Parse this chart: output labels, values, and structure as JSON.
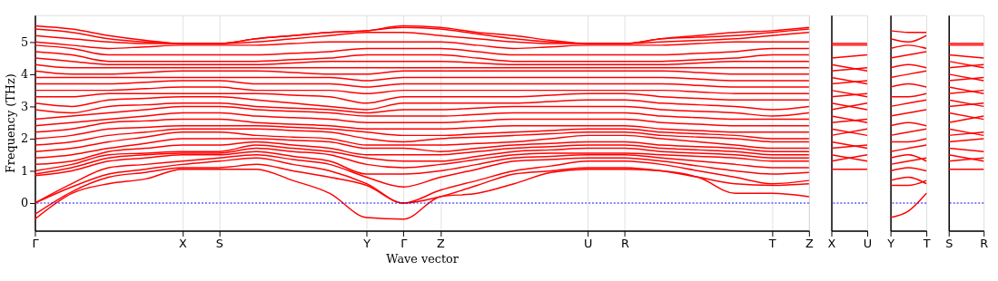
{
  "chart_data": [
    {
      "type": "line",
      "ylabel": "Frequency (THz)",
      "xlabel": "Wave vector",
      "grid": "x",
      "line_style": "solid",
      "categories": [
        "Γ",
        null,
        null,
        null,
        "X",
        "S",
        null,
        null,
        null,
        "Y",
        "Γ",
        "Z",
        null,
        null,
        null,
        "U",
        "R",
        null,
        null,
        null,
        "T",
        "Z"
      ],
      "ylim": [
        -0.86,
        5.83
      ],
      "yticks": [
        0,
        1,
        2,
        3,
        4,
        5
      ],
      "ref_lines": [
        {
          "axis": "y",
          "value": 0,
          "color": "#0000ff",
          "line_style": "dotted"
        }
      ],
      "series": [
        {
          "color": "#ff0000",
          "values": [
            -0.5,
            0.3,
            0.6,
            0.75,
            1.05,
            1.05,
            1.05,
            0.7,
            0.3,
            -0.45,
            -0.5,
            0.2,
            0.3,
            0.6,
            0.95,
            1.05,
            1.05,
            1.0,
            0.8,
            0.3,
            0.3,
            0.2
          ]
        },
        {
          "color": "#ff0000",
          "values": [
            -0.35,
            0.35,
            0.8,
            0.95,
            1.1,
            1.1,
            1.2,
            1.0,
            0.8,
            0.55,
            0,
            0.2,
            0.55,
            0.9,
            1.0,
            1.1,
            1.1,
            1.0,
            0.8,
            0.6,
            0.55,
            0.6
          ]
        },
        {
          "color": "#ff0000",
          "values": [
            0,
            0.5,
            0.9,
            1.05,
            1.2,
            1.3,
            1.4,
            1.2,
            1.0,
            0.6,
            0,
            0.4,
            0.7,
            1.0,
            1.15,
            1.3,
            1.3,
            1.2,
            1.0,
            0.8,
            0.6,
            0.7
          ]
        },
        {
          "color": "#ff0000",
          "values": [
            0,
            0.6,
            1.1,
            1.2,
            1.3,
            1.4,
            1.5,
            1.35,
            1.2,
            0.8,
            0.5,
            0.8,
            1.05,
            1.3,
            1.35,
            1.4,
            1.4,
            1.3,
            1.15,
            1.0,
            0.9,
            0.95
          ]
        },
        {
          "color": "#ff0000",
          "values": [
            0.85,
            1.0,
            1.3,
            1.4,
            1.5,
            1.5,
            1.6,
            1.45,
            1.3,
            0.9,
            0.9,
            1.0,
            1.2,
            1.4,
            1.45,
            1.5,
            1.5,
            1.4,
            1.3,
            1.2,
            1.1,
            1.1
          ]
        },
        {
          "color": "#ff0000",
          "values": [
            0.9,
            1.1,
            1.4,
            1.5,
            1.55,
            1.55,
            1.7,
            1.6,
            1.5,
            1.2,
            1.1,
            1.2,
            1.35,
            1.5,
            1.55,
            1.55,
            1.55,
            1.5,
            1.45,
            1.4,
            1.3,
            1.3
          ]
        },
        {
          "color": "#ff0000",
          "values": [
            1.0,
            1.2,
            1.5,
            1.55,
            1.6,
            1.6,
            1.8,
            1.7,
            1.6,
            1.4,
            1.3,
            1.3,
            1.45,
            1.6,
            1.65,
            1.7,
            1.7,
            1.6,
            1.55,
            1.5,
            1.4,
            1.4
          ]
        },
        {
          "color": "#ff0000",
          "values": [
            1.2,
            1.3,
            1.6,
            1.7,
            1.8,
            1.8,
            1.9,
            1.8,
            1.7,
            1.5,
            1.5,
            1.5,
            1.6,
            1.7,
            1.75,
            1.8,
            1.8,
            1.7,
            1.65,
            1.6,
            1.5,
            1.5
          ]
        },
        {
          "color": "#ff0000",
          "values": [
            1.4,
            1.5,
            1.7,
            1.85,
            2.0,
            2.0,
            2.0,
            1.95,
            1.9,
            1.7,
            1.7,
            1.6,
            1.7,
            1.8,
            1.85,
            1.9,
            1.9,
            1.8,
            1.75,
            1.7,
            1.6,
            1.6
          ]
        },
        {
          "color": "#ff0000",
          "values": [
            1.6,
            1.7,
            1.9,
            2.05,
            2.2,
            2.2,
            2.1,
            2.05,
            2.0,
            1.8,
            1.8,
            1.8,
            1.85,
            1.9,
            2.0,
            2.1,
            2.1,
            2.0,
            1.9,
            1.8,
            1.7,
            1.7
          ]
        },
        {
          "color": "#ff0000",
          "values": [
            1.8,
            1.9,
            2.1,
            2.2,
            2.3,
            2.3,
            2.3,
            2.25,
            2.2,
            2.0,
            1.9,
            2.0,
            2.05,
            2.1,
            2.15,
            2.2,
            2.2,
            2.1,
            2.05,
            2.0,
            1.9,
            1.9
          ]
        },
        {
          "color": "#ff0000",
          "values": [
            2.0,
            2.1,
            2.3,
            2.35,
            2.4,
            2.4,
            2.4,
            2.35,
            2.3,
            2.2,
            2.1,
            2.1,
            2.15,
            2.2,
            2.25,
            2.3,
            2.3,
            2.2,
            2.15,
            2.1,
            2.0,
            2.0
          ]
        },
        {
          "color": "#ff0000",
          "values": [
            2.2,
            2.3,
            2.5,
            2.55,
            2.6,
            2.6,
            2.5,
            2.45,
            2.4,
            2.3,
            2.3,
            2.3,
            2.35,
            2.4,
            2.4,
            2.4,
            2.4,
            2.3,
            2.25,
            2.2,
            2.2,
            2.2
          ]
        },
        {
          "color": "#ff0000",
          "values": [
            2.4,
            2.5,
            2.6,
            2.7,
            2.8,
            2.8,
            2.7,
            2.65,
            2.6,
            2.5,
            2.5,
            2.5,
            2.55,
            2.6,
            2.6,
            2.6,
            2.6,
            2.5,
            2.45,
            2.4,
            2.4,
            2.4
          ]
        },
        {
          "color": "#ff0000",
          "values": [
            2.6,
            2.7,
            2.8,
            2.9,
            3.0,
            3.0,
            2.9,
            2.85,
            2.8,
            2.7,
            2.7,
            2.7,
            2.75,
            2.8,
            2.8,
            2.8,
            2.8,
            2.7,
            2.65,
            2.6,
            2.6,
            2.6
          ]
        },
        {
          "color": "#ff0000",
          "values": [
            2.9,
            2.8,
            3.0,
            3.05,
            3.1,
            3.1,
            3.0,
            2.95,
            2.9,
            2.8,
            2.9,
            2.9,
            2.95,
            3.0,
            3.0,
            3.0,
            3.0,
            2.9,
            2.85,
            2.8,
            2.7,
            2.8
          ]
        },
        {
          "color": "#ff0000",
          "values": [
            3.1,
            3.0,
            3.2,
            3.25,
            3.3,
            3.3,
            3.2,
            3.1,
            3.0,
            2.9,
            3.1,
            3.1,
            3.1,
            3.1,
            3.15,
            3.2,
            3.2,
            3.1,
            3.05,
            3.0,
            2.9,
            3.0
          ]
        },
        {
          "color": "#ff0000",
          "values": [
            3.3,
            3.3,
            3.4,
            3.4,
            3.4,
            3.4,
            3.4,
            3.35,
            3.3,
            3.1,
            3.3,
            3.3,
            3.3,
            3.3,
            3.35,
            3.4,
            3.4,
            3.3,
            3.25,
            3.2,
            3.2,
            3.2
          ]
        },
        {
          "color": "#ff0000",
          "values": [
            3.5,
            3.5,
            3.5,
            3.55,
            3.6,
            3.6,
            3.5,
            3.5,
            3.5,
            3.4,
            3.5,
            3.5,
            3.5,
            3.5,
            3.5,
            3.5,
            3.5,
            3.5,
            3.45,
            3.4,
            3.4,
            3.4
          ]
        },
        {
          "color": "#ff0000",
          "values": [
            3.7,
            3.7,
            3.7,
            3.75,
            3.8,
            3.8,
            3.7,
            3.7,
            3.7,
            3.6,
            3.7,
            3.7,
            3.7,
            3.7,
            3.7,
            3.7,
            3.7,
            3.7,
            3.65,
            3.6,
            3.6,
            3.6
          ]
        },
        {
          "color": "#ff0000",
          "values": [
            3.9,
            3.9,
            3.9,
            3.9,
            3.9,
            3.9,
            3.9,
            3.9,
            3.9,
            3.8,
            3.9,
            3.9,
            3.9,
            3.9,
            3.9,
            3.9,
            3.9,
            3.9,
            3.85,
            3.8,
            3.8,
            3.8
          ]
        },
        {
          "color": "#ff0000",
          "values": [
            4.1,
            4.0,
            4.0,
            4.05,
            4.1,
            4.1,
            4.1,
            4.05,
            4.0,
            4.0,
            4.1,
            4.1,
            4.1,
            4.1,
            4.1,
            4.1,
            4.1,
            4.1,
            4.05,
            4.0,
            4.0,
            4.0
          ]
        },
        {
          "color": "#ff0000",
          "values": [
            4.3,
            4.2,
            4.2,
            4.2,
            4.2,
            4.2,
            4.2,
            4.2,
            4.2,
            4.2,
            4.2,
            4.2,
            4.2,
            4.2,
            4.2,
            4.2,
            4.2,
            4.2,
            4.2,
            4.2,
            4.2,
            4.2
          ]
        },
        {
          "color": "#ff0000",
          "values": [
            4.5,
            4.4,
            4.3,
            4.3,
            4.3,
            4.3,
            4.3,
            4.35,
            4.4,
            4.4,
            4.4,
            4.4,
            4.35,
            4.3,
            4.3,
            4.3,
            4.3,
            4.3,
            4.35,
            4.4,
            4.4,
            4.4
          ]
        },
        {
          "color": "#ff0000",
          "values": [
            4.7,
            4.6,
            4.4,
            4.4,
            4.4,
            4.4,
            4.4,
            4.45,
            4.5,
            4.6,
            4.6,
            4.6,
            4.5,
            4.4,
            4.4,
            4.4,
            4.4,
            4.4,
            4.45,
            4.5,
            4.6,
            4.6
          ]
        },
        {
          "color": "#ff0000",
          "values": [
            4.9,
            4.8,
            4.6,
            4.6,
            4.6,
            4.6,
            4.6,
            4.65,
            4.7,
            4.8,
            4.8,
            4.8,
            4.7,
            4.6,
            4.6,
            4.6,
            4.6,
            4.6,
            4.65,
            4.7,
            4.8,
            4.8
          ]
        },
        {
          "color": "#ff0000",
          "values": [
            5.0,
            4.9,
            4.8,
            4.85,
            4.9,
            4.9,
            4.9,
            4.95,
            5.0,
            5.0,
            5.0,
            5.0,
            4.9,
            4.8,
            4.85,
            4.9,
            4.9,
            4.9,
            4.95,
            5.0,
            5.0,
            5.0
          ]
        },
        {
          "color": "#ff0000",
          "values": [
            5.2,
            5.1,
            5.0,
            4.95,
            4.95,
            4.95,
            5.0,
            5.1,
            5.2,
            5.3,
            5.3,
            5.2,
            5.1,
            5.0,
            4.95,
            4.95,
            4.95,
            5.0,
            5.05,
            5.1,
            5.2,
            5.3
          ]
        },
        {
          "color": "#ff0000",
          "values": [
            5.4,
            5.3,
            5.1,
            5.0,
            4.95,
            4.95,
            5.1,
            5.2,
            5.3,
            5.35,
            5.45,
            5.4,
            5.25,
            5.1,
            5.0,
            4.95,
            4.95,
            5.1,
            5.15,
            5.2,
            5.3,
            5.4
          ]
        },
        {
          "color": "#ff0000",
          "values": [
            5.5,
            5.4,
            5.2,
            5.05,
            4.95,
            4.95,
            5.1,
            5.2,
            5.3,
            5.35,
            5.5,
            5.45,
            5.3,
            5.2,
            5.05,
            4.95,
            4.95,
            5.1,
            5.2,
            5.3,
            5.35,
            5.45
          ]
        }
      ]
    },
    {
      "type": "line",
      "tick_labels": "x",
      "line_style": "solid",
      "categories": [
        "X",
        "U"
      ],
      "ylim": [
        -0.86,
        5.83
      ],
      "yticks": [
        0,
        1,
        2,
        3,
        4,
        5
      ],
      "ref_lines": [
        {
          "axis": "y",
          "value": 0,
          "color": "#0000ff",
          "line_style": "dotted"
        }
      ],
      "series": [
        {
          "color": "#ff0000",
          "values": [
            1.05,
            1.05
          ]
        },
        {
          "color": "#ff0000",
          "values": [
            1.3,
            1.5
          ]
        },
        {
          "color": "#ff0000",
          "values": [
            1.5,
            1.3
          ]
        },
        {
          "color": "#ff0000",
          "values": [
            1.7,
            1.8
          ]
        },
        {
          "color": "#ff0000",
          "values": [
            1.9,
            1.7
          ]
        },
        {
          "color": "#ff0000",
          "values": [
            2.1,
            2.3
          ]
        },
        {
          "color": "#ff0000",
          "values": [
            2.3,
            2.1
          ]
        },
        {
          "color": "#ff0000",
          "values": [
            2.5,
            2.6
          ]
        },
        {
          "color": "#ff0000",
          "values": [
            2.7,
            2.5
          ]
        },
        {
          "color": "#ff0000",
          "values": [
            2.9,
            3.1
          ]
        },
        {
          "color": "#ff0000",
          "values": [
            3.1,
            2.9
          ]
        },
        {
          "color": "#ff0000",
          "values": [
            3.3,
            3.4
          ]
        },
        {
          "color": "#ff0000",
          "values": [
            3.5,
            3.3
          ]
        },
        {
          "color": "#ff0000",
          "values": [
            3.7,
            3.8
          ]
        },
        {
          "color": "#ff0000",
          "values": [
            3.9,
            3.7
          ]
        },
        {
          "color": "#ff0000",
          "values": [
            4.1,
            4.2
          ]
        },
        {
          "color": "#ff0000",
          "values": [
            4.3,
            4.1
          ]
        },
        {
          "color": "#ff0000",
          "values": [
            4.5,
            4.6
          ]
        },
        {
          "color": "#ff0000",
          "values": [
            4.9,
            4.9
          ]
        },
        {
          "color": "#ff0000",
          "values": [
            4.95,
            4.95
          ]
        }
      ]
    },
    {
      "type": "line",
      "tick_labels": "x",
      "line_style": "solid",
      "categories": [
        "Y",
        null,
        "T"
      ],
      "ylim": [
        -0.86,
        5.83
      ],
      "yticks": [
        0,
        1,
        2,
        3,
        4,
        5
      ],
      "ref_lines": [
        {
          "axis": "y",
          "value": 0,
          "color": "#0000ff",
          "line_style": "dotted"
        }
      ],
      "series": [
        {
          "color": "#ff0000",
          "values": [
            -0.45,
            -0.25,
            0.3
          ]
        },
        {
          "color": "#ff0000",
          "values": [
            0.55,
            0.55,
            0.7
          ]
        },
        {
          "color": "#ff0000",
          "values": [
            0.7,
            0.8,
            0.6
          ]
        },
        {
          "color": "#ff0000",
          "values": [
            1.0,
            1.1,
            1.0
          ]
        },
        {
          "color": "#ff0000",
          "values": [
            1.2,
            1.3,
            1.4
          ]
        },
        {
          "color": "#ff0000",
          "values": [
            1.4,
            1.5,
            1.3
          ]
        },
        {
          "color": "#ff0000",
          "values": [
            1.6,
            1.7,
            1.8
          ]
        },
        {
          "color": "#ff0000",
          "values": [
            1.9,
            1.9,
            2.0
          ]
        },
        {
          "color": "#ff0000",
          "values": [
            2.1,
            2.2,
            2.3
          ]
        },
        {
          "color": "#ff0000",
          "values": [
            2.4,
            2.5,
            2.4
          ]
        },
        {
          "color": "#ff0000",
          "values": [
            2.7,
            2.8,
            2.9
          ]
        },
        {
          "color": "#ff0000",
          "values": [
            3.0,
            3.1,
            3.2
          ]
        },
        {
          "color": "#ff0000",
          "values": [
            3.3,
            3.3,
            3.4
          ]
        },
        {
          "color": "#ff0000",
          "values": [
            3.6,
            3.7,
            3.6
          ]
        },
        {
          "color": "#ff0000",
          "values": [
            3.9,
            4.0,
            4.1
          ]
        },
        {
          "color": "#ff0000",
          "values": [
            4.2,
            4.3,
            4.2
          ]
        },
        {
          "color": "#ff0000",
          "values": [
            4.5,
            4.6,
            4.7
          ]
        },
        {
          "color": "#ff0000",
          "values": [
            4.8,
            4.9,
            4.8
          ]
        },
        {
          "color": "#ff0000",
          "values": [
            5.1,
            5.0,
            5.2
          ]
        },
        {
          "color": "#ff0000",
          "values": [
            5.35,
            5.3,
            5.3
          ]
        }
      ]
    },
    {
      "type": "line",
      "tick_labels": "x",
      "line_style": "solid",
      "categories": [
        "S",
        "R"
      ],
      "ylim": [
        -0.86,
        5.83
      ],
      "yticks": [
        0,
        1,
        2,
        3,
        4,
        5
      ],
      "ref_lines": [
        {
          "axis": "y",
          "value": 0,
          "color": "#0000ff",
          "line_style": "dotted"
        }
      ],
      "series": [
        {
          "color": "#ff0000",
          "values": [
            1.05,
            1.05
          ]
        },
        {
          "color": "#ff0000",
          "values": [
            1.3,
            1.4
          ]
        },
        {
          "color": "#ff0000",
          "values": [
            1.5,
            1.3
          ]
        },
        {
          "color": "#ff0000",
          "values": [
            1.7,
            1.6
          ]
        },
        {
          "color": "#ff0000",
          "values": [
            1.9,
            2.0
          ]
        },
        {
          "color": "#ff0000",
          "values": [
            2.1,
            2.2
          ]
        },
        {
          "color": "#ff0000",
          "values": [
            2.3,
            2.1
          ]
        },
        {
          "color": "#ff0000",
          "values": [
            2.5,
            2.7
          ]
        },
        {
          "color": "#ff0000",
          "values": [
            2.8,
            2.6
          ]
        },
        {
          "color": "#ff0000",
          "values": [
            3.0,
            3.1
          ]
        },
        {
          "color": "#ff0000",
          "values": [
            3.2,
            3.0
          ]
        },
        {
          "color": "#ff0000",
          "values": [
            3.4,
            3.5
          ]
        },
        {
          "color": "#ff0000",
          "values": [
            3.6,
            3.4
          ]
        },
        {
          "color": "#ff0000",
          "values": [
            3.8,
            3.9
          ]
        },
        {
          "color": "#ff0000",
          "values": [
            4.0,
            3.8
          ]
        },
        {
          "color": "#ff0000",
          "values": [
            4.2,
            4.3
          ]
        },
        {
          "color": "#ff0000",
          "values": [
            4.4,
            4.2
          ]
        },
        {
          "color": "#ff0000",
          "values": [
            4.6,
            4.5
          ]
        },
        {
          "color": "#ff0000",
          "values": [
            4.9,
            4.9
          ]
        },
        {
          "color": "#ff0000",
          "values": [
            4.95,
            4.95
          ]
        }
      ]
    }
  ]
}
